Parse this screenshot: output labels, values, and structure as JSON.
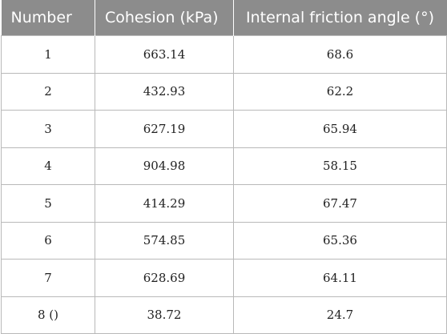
{
  "table": {
    "headers": [
      "Number",
      "Cohesion (kPa)",
      "Internal friction angle (°)"
    ],
    "rows": [
      [
        "1",
        "663.14",
        "68.6"
      ],
      [
        "2",
        "432.93",
        "62.2"
      ],
      [
        "3",
        "627.19",
        "65.94"
      ],
      [
        "4",
        "904.98",
        "58.15"
      ],
      [
        "5",
        "414.29",
        "67.47"
      ],
      [
        "6",
        "574.85",
        "65.36"
      ],
      [
        "7",
        "628.69",
        "64.11"
      ],
      [
        "8 ()",
        "38.72",
        "24.7"
      ]
    ]
  }
}
